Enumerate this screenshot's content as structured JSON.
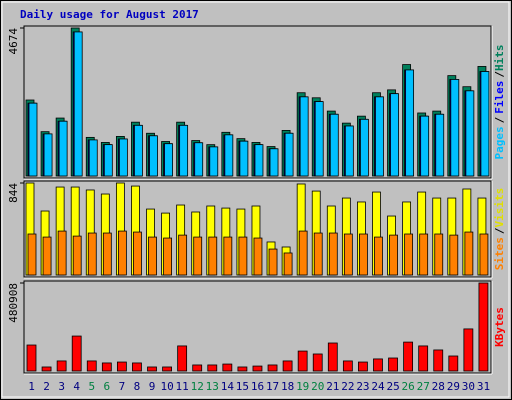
{
  "chart_data": {
    "type": "bar",
    "title": "Daily usage for August 2017",
    "categories": [
      "1",
      "2",
      "3",
      "4",
      "5",
      "6",
      "7",
      "8",
      "9",
      "10",
      "11",
      "12",
      "13",
      "14",
      "15",
      "16",
      "17",
      "18",
      "19",
      "20",
      "21",
      "22",
      "23",
      "24",
      "25",
      "26",
      "27",
      "28",
      "29",
      "30",
      "31"
    ],
    "category_colors": [
      "#000080",
      "#000080",
      "#000080",
      "#000080",
      "#008040",
      "#008040",
      "#000080",
      "#000080",
      "#000080",
      "#000080",
      "#000080",
      "#008040",
      "#008040",
      "#000080",
      "#000080",
      "#000080",
      "#000080",
      "#000080",
      "#008040",
      "#008040",
      "#000080",
      "#000080",
      "#000080",
      "#000080",
      "#000080",
      "#008040",
      "#008040",
      "#000080",
      "#000080",
      "#000080",
      "#000080"
    ],
    "panels": [
      {
        "ylim": [
          0,
          4674
        ],
        "yticks": [
          4674
        ],
        "right_labels": [
          {
            "text": "Pages",
            "color": "#00c0ff"
          },
          {
            "text": "/",
            "color": "#000000"
          },
          {
            "text": "Files",
            "color": "#0000ff"
          },
          {
            "text": "/",
            "color": "#000000"
          },
          {
            "text": "Hits",
            "color": "#00805c"
          }
        ],
        "series": [
          {
            "name": "Hits",
            "color": "#00805c",
            "values": [
              2400,
              1400,
              1830,
              4674,
              1220,
              1060,
              1250,
              1700,
              1350,
              1090,
              1700,
              1120,
              990,
              1380,
              1180,
              1060,
              930,
              1440,
              2630,
              2470,
              2050,
              1670,
              1890,
              2630,
              2720,
              3520,
              1990,
              2050,
              3170,
              2820,
              3460
            ]
          },
          {
            "name": "Files",
            "color": "#0000ff",
            "values": [
              2300,
              1330,
              1730,
              4550,
              1140,
              990,
              1170,
              1600,
              1270,
              1020,
              1600,
              1050,
              920,
              1300,
              1100,
              990,
              860,
              1350,
              2500,
              2350,
              1950,
              1580,
              1790,
              2500,
              2600,
              3350,
              1890,
              1950,
              3050,
              2690,
              3300
            ]
          },
          {
            "name": "Pages",
            "color": "#00c0ff",
            "values": [
              2300,
              1330,
              1730,
              4550,
              1140,
              990,
              1170,
              1600,
              1270,
              1020,
              1600,
              1050,
              920,
              1300,
              1100,
              990,
              860,
              1350,
              2500,
              2350,
              1950,
              1580,
              1790,
              2500,
              2600,
              3350,
              1890,
              1950,
              3050,
              2690,
              3300
            ]
          }
        ]
      },
      {
        "ylim": [
          0,
          844
        ],
        "yticks": [
          844
        ],
        "right_labels": [
          {
            "text": "Sites",
            "color": "#ff8000"
          },
          {
            "text": "/",
            "color": "#000000"
          },
          {
            "text": "Visits",
            "color": "#e0e000"
          }
        ],
        "series": [
          {
            "name": "Visits",
            "color": "#ffff00",
            "values": [
              844,
              587,
              807,
              807,
              780,
              743,
              844,
              816,
              605,
              568,
              642,
              578,
              633,
              614,
              605,
              633,
              303,
              257,
              835,
              770,
              633,
              706,
              670,
              761,
              541,
              670,
              761,
              706,
              706,
              789,
              706
            ]
          },
          {
            "name": "Sites",
            "color": "#ff8000",
            "values": [
              376,
              348,
              403,
              357,
              385,
              385,
              403,
              394,
              348,
              339,
              366,
              348,
              348,
              348,
              348,
              339,
              238,
              202,
              403,
              385,
              385,
              376,
              376,
              348,
              366,
              376,
              376,
              376,
              366,
              394,
              376
            ]
          }
        ]
      },
      {
        "ylim": [
          0,
          480908
        ],
        "yticks": [
          480908
        ],
        "right_labels": [
          {
            "text": "KBytes",
            "color": "#ff0000"
          }
        ],
        "series": [
          {
            "name": "KBytes",
            "color": "#ff0000",
            "values": [
              142000,
              22000,
              55000,
              191000,
              55000,
              44000,
              49000,
              44000,
              22000,
              22000,
              137000,
              33000,
              33000,
              38000,
              22000,
              27000,
              33000,
              55000,
              109000,
              93000,
              153000,
              55000,
              49000,
              66000,
              71000,
              158000,
              137000,
              115000,
              82000,
              230000,
              480908
            ]
          }
        ]
      }
    ]
  }
}
